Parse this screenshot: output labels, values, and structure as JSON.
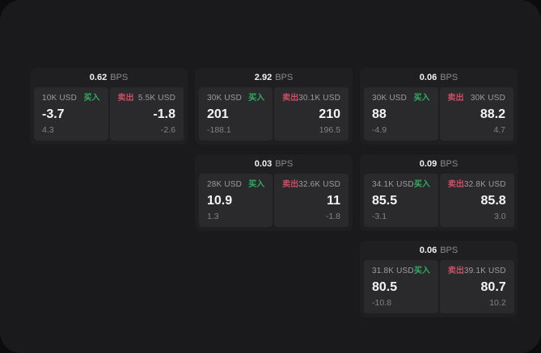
{
  "page": {
    "unit_label": "BPS",
    "buy_label": "买入",
    "sell_label": "卖出"
  },
  "colors": {
    "buy": "#2fae62",
    "sell": "#c94f63",
    "screen_bg": "#1a1a1c",
    "card_bg": "#1f1f21",
    "panel_bg": "#2a2a2c"
  },
  "cards": [
    {
      "bps": "0.62",
      "grid": {
        "row": 1,
        "col": 1
      },
      "buy": {
        "size": "10K USD",
        "value": "-3.7",
        "delta": "4.3"
      },
      "sell": {
        "size": "5.5K USD",
        "value": "-1.8",
        "delta": "-2.6"
      }
    },
    {
      "bps": "2.92",
      "grid": {
        "row": 1,
        "col": 2
      },
      "buy": {
        "size": "30K USD",
        "value": "201",
        "delta": "-188.1"
      },
      "sell": {
        "size": "30.1K USD",
        "value": "210",
        "delta": "196.5"
      }
    },
    {
      "bps": "0.06",
      "grid": {
        "row": 1,
        "col": 3
      },
      "buy": {
        "size": "30K USD",
        "value": "88",
        "delta": "-4.9"
      },
      "sell": {
        "size": "30K USD",
        "value": "88.2",
        "delta": "4.7"
      }
    },
    {
      "bps": "0.03",
      "grid": {
        "row": 2,
        "col": 2
      },
      "buy": {
        "size": "28K USD",
        "value": "10.9",
        "delta": "1.3"
      },
      "sell": {
        "size": "32.6K USD",
        "value": "11",
        "delta": "-1.8"
      }
    },
    {
      "bps": "0.09",
      "grid": {
        "row": 2,
        "col": 3
      },
      "buy": {
        "size": "34.1K USD",
        "value": "85.5",
        "delta": "-3.1"
      },
      "sell": {
        "size": "32.8K USD",
        "value": "85.8",
        "delta": "3.0"
      }
    },
    {
      "bps": "0.06",
      "grid": {
        "row": 3,
        "col": 3
      },
      "buy": {
        "size": "31.8K USD",
        "value": "80.5",
        "delta": "-10.8"
      },
      "sell": {
        "size": "39.1K USD",
        "value": "80.7",
        "delta": "10.2"
      }
    }
  ]
}
